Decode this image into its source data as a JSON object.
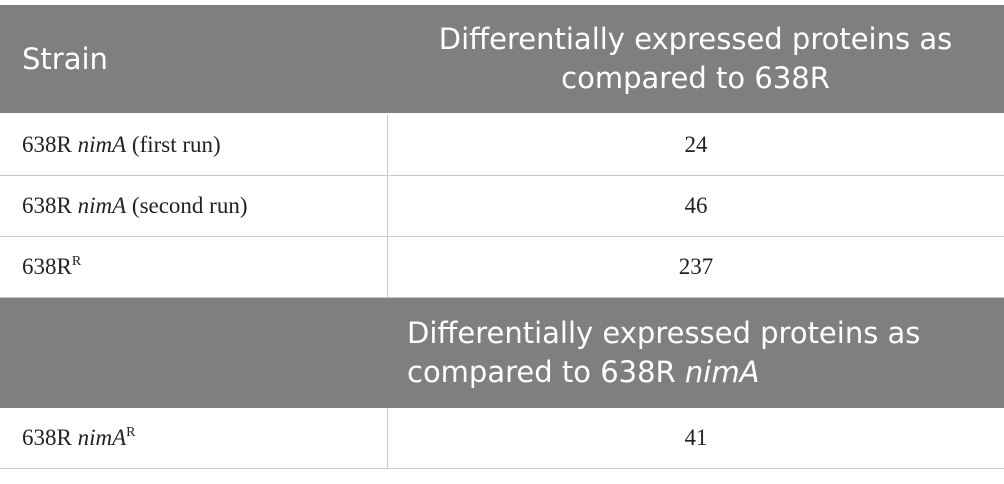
{
  "table": {
    "sections": [
      {
        "header": [
          [
            {
              "text": "Strain"
            }
          ],
          [
            {
              "text": "Differentially expressed proteins as compared to 638R"
            }
          ]
        ],
        "rows": [
          [
            [
              {
                "text": "638R "
              },
              {
                "text": "nimA",
                "style": "italic"
              },
              {
                "text": " (first run)"
              }
            ],
            [
              {
                "text": "24"
              }
            ]
          ],
          [
            [
              {
                "text": "638R "
              },
              {
                "text": "nimA",
                "style": "italic"
              },
              {
                "text": " (second run)"
              }
            ],
            [
              {
                "text": "46"
              }
            ]
          ],
          [
            [
              {
                "text": "638R"
              },
              {
                "text": "R",
                "style": "sup"
              }
            ],
            [
              {
                "text": "237"
              }
            ]
          ]
        ]
      },
      {
        "header": [
          null,
          [
            {
              "text": "Differentially expressed proteins as compared to 638R "
            },
            {
              "text": "nimA",
              "style": "italic"
            }
          ]
        ],
        "rows": [
          [
            [
              {
                "text": "638R "
              },
              {
                "text": "nimA",
                "style": "italic"
              },
              {
                "text": "R",
                "style": "sup"
              }
            ],
            [
              {
                "text": "41"
              }
            ]
          ]
        ]
      }
    ]
  }
}
